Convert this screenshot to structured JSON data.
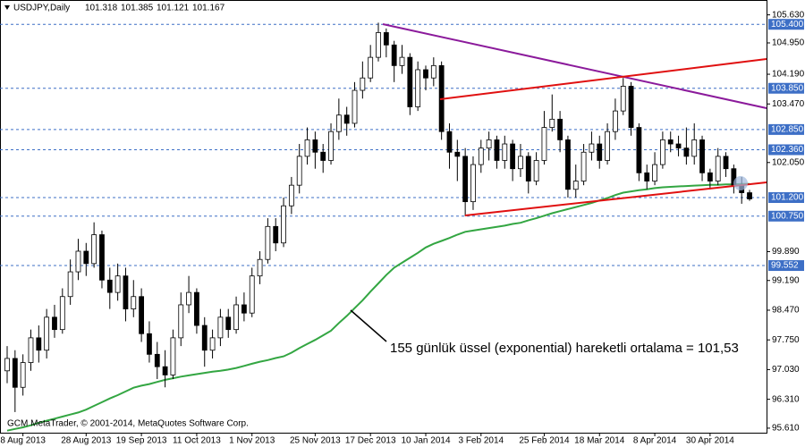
{
  "chart_data": {
    "type": "candlestick",
    "title": "USDJPY,Daily",
    "last_ohlc": [
      101.318,
      101.385,
      101.121,
      101.167
    ],
    "copyright": "GCM MetaTrader, © 2001-2014, MetaQuotes Software Corp.",
    "annotation": "155 günlük üssel (exponential) hareketli ortalama = 101,53",
    "categories": [
      null,
      null,
      "8 Aug 2013",
      null,
      null,
      null,
      null,
      null,
      null,
      null,
      "28 Aug 2013",
      null,
      null,
      null,
      null,
      null,
      null,
      "19 Sep 2013",
      null,
      null,
      null,
      null,
      null,
      null,
      "11 Oct 2013",
      null,
      null,
      null,
      null,
      null,
      null,
      "1 Nov 2013",
      null,
      null,
      null,
      null,
      null,
      null,
      null,
      "25 Nov 2013",
      null,
      null,
      null,
      null,
      null,
      null,
      "17 Dec 2013",
      null,
      null,
      null,
      null,
      null,
      null,
      "10 Jan 2014",
      null,
      null,
      null,
      null,
      null,
      null,
      "3 Feb 2014",
      null,
      null,
      null,
      null,
      null,
      null,
      null,
      "25 Feb 2014",
      null,
      null,
      null,
      null,
      null,
      null,
      "18 Mar 2014",
      null,
      null,
      null,
      null,
      null,
      null,
      "8 Apr 2014",
      null,
      null,
      null,
      null,
      null,
      null,
      "30 Apr 2014",
      null,
      null,
      null,
      null,
      null
    ],
    "open": [
      97.0,
      97.3,
      96.6,
      97.2,
      97.8,
      97.5,
      98.3,
      98.0,
      98.8,
      99.4,
      99.9,
      99.6,
      100.3,
      99.2,
      98.9,
      99.3,
      98.5,
      98.8,
      97.9,
      97.4,
      97.1,
      96.9,
      97.8,
      98.6,
      98.9,
      98.1,
      97.5,
      97.8,
      98.3,
      98.0,
      98.6,
      98.4,
      99.3,
      99.7,
      100.5,
      100.1,
      101.0,
      101.5,
      102.2,
      102.6,
      102.3,
      102.1,
      102.8,
      103.2,
      103.0,
      103.8,
      104.1,
      104.6,
      105.2,
      104.9,
      104.4,
      104.6,
      103.4,
      104.3,
      104.1,
      104.4,
      102.8,
      102.3,
      102.2,
      101.1,
      102.0,
      102.4,
      102.6,
      102.1,
      102.5,
      101.9,
      102.2,
      101.6,
      102.1,
      102.9,
      103.1,
      102.6,
      101.4,
      101.6,
      102.3,
      102.5,
      102.1,
      102.8,
      103.3,
      103.9,
      102.9,
      101.8,
      101.6,
      102.0,
      102.6,
      102.5,
      102.4,
      102.2,
      102.6,
      101.8,
      101.6,
      102.2,
      101.9,
      101.5,
      101.318
    ],
    "high": [
      97.6,
      97.5,
      97.4,
      98.0,
      98.1,
      98.5,
      98.6,
      99.0,
      99.7,
      100.2,
      100.1,
      100.6,
      100.4,
      99.5,
      99.6,
      99.5,
      99.2,
      99.0,
      98.2,
      97.7,
      97.5,
      98.0,
      98.9,
      99.3,
      99.0,
      98.3,
      98.0,
      98.5,
      98.5,
      98.8,
      98.9,
      99.5,
      99.9,
      100.7,
      100.7,
      101.2,
      101.7,
      102.5,
      102.9,
      102.8,
      102.5,
      103.0,
      103.6,
      103.4,
      104.0,
      104.5,
      104.9,
      105.44,
      105.3,
      105.0,
      104.9,
      104.7,
      104.5,
      104.4,
      104.6,
      104.5,
      103.0,
      102.6,
      102.4,
      102.2,
      102.6,
      102.8,
      102.7,
      102.7,
      102.6,
      102.5,
      102.3,
      102.3,
      103.3,
      103.7,
      103.3,
      102.7,
      102.0,
      102.5,
      102.8,
      102.7,
      103.0,
      103.6,
      104.1,
      104.0,
      103.0,
      102.0,
      102.3,
      102.8,
      102.8,
      102.7,
      102.9,
      103.0,
      102.7,
      101.9,
      102.4,
      102.3,
      102.0,
      101.7,
      101.385
    ],
    "low": [
      96.7,
      96.0,
      96.4,
      97.0,
      97.2,
      97.3,
      97.8,
      97.9,
      98.6,
      99.2,
      99.3,
      99.5,
      99.0,
      98.5,
      98.7,
      98.2,
      98.3,
      97.7,
      97.2,
      96.8,
      96.6,
      96.8,
      97.6,
      98.4,
      97.9,
      97.1,
      97.3,
      97.6,
      97.8,
      97.9,
      98.2,
      98.3,
      99.1,
      99.6,
      99.9,
      100.0,
      100.8,
      101.3,
      102.0,
      101.9,
      101.8,
      102.0,
      102.6,
      102.7,
      102.9,
      103.6,
      104.0,
      104.5,
      104.6,
      104.0,
      104.2,
      103.2,
      103.3,
      103.8,
      103.9,
      102.6,
      101.9,
      101.6,
      100.75,
      100.9,
      101.8,
      102.1,
      101.9,
      101.9,
      101.6,
      101.7,
      101.3,
      101.5,
      102.0,
      102.8,
      102.3,
      101.2,
      101.2,
      101.5,
      102.1,
      101.9,
      102.0,
      102.6,
      103.2,
      102.7,
      101.6,
      101.4,
      101.5,
      101.9,
      102.3,
      102.2,
      102.0,
      102.0,
      101.6,
      101.4,
      101.5,
      101.7,
      101.3,
      101.05,
      101.121
    ],
    "close": [
      97.3,
      96.6,
      97.2,
      97.8,
      97.5,
      98.3,
      98.0,
      98.8,
      99.4,
      99.9,
      99.6,
      100.3,
      99.2,
      98.9,
      99.3,
      98.5,
      98.8,
      97.9,
      97.4,
      97.1,
      96.9,
      97.8,
      98.6,
      98.9,
      98.1,
      97.5,
      97.8,
      98.3,
      98.0,
      98.6,
      98.4,
      99.3,
      99.7,
      100.5,
      100.1,
      101.0,
      101.5,
      102.2,
      102.6,
      102.3,
      102.1,
      102.8,
      103.2,
      103.0,
      103.8,
      104.1,
      104.6,
      105.2,
      104.9,
      104.4,
      104.6,
      103.4,
      104.3,
      104.1,
      104.4,
      102.8,
      102.3,
      102.2,
      101.1,
      102.0,
      102.4,
      102.6,
      102.1,
      102.5,
      101.9,
      102.2,
      101.6,
      102.1,
      102.9,
      103.1,
      102.6,
      101.4,
      101.6,
      102.3,
      102.5,
      102.1,
      102.8,
      103.3,
      103.9,
      102.9,
      101.8,
      101.6,
      102.0,
      102.6,
      102.5,
      102.4,
      102.2,
      102.6,
      101.8,
      101.6,
      102.2,
      101.9,
      101.5,
      101.318,
      101.167
    ],
    "series": [
      {
        "color": "#33a642",
        "values": [
          95.55,
          95.59,
          95.63,
          95.68,
          95.74,
          95.79,
          95.84,
          95.89,
          95.94,
          95.99,
          96.06,
          96.15,
          96.24,
          96.33,
          96.41,
          96.5,
          96.59,
          96.64,
          96.68,
          96.73,
          96.78,
          96.82,
          96.86,
          96.89,
          96.92,
          96.95,
          96.98,
          97.0,
          97.03,
          97.07,
          97.12,
          97.17,
          97.22,
          97.26,
          97.31,
          97.35,
          97.44,
          97.55,
          97.65,
          97.75,
          97.86,
          97.97,
          98.16,
          98.33,
          98.52,
          98.71,
          98.92,
          99.12,
          99.32,
          99.5,
          99.62,
          99.74,
          99.86,
          99.99,
          100.08,
          100.15,
          100.22,
          100.3,
          100.37,
          100.4,
          100.43,
          100.46,
          100.49,
          100.52,
          100.56,
          100.59,
          100.65,
          100.7,
          100.76,
          100.82,
          100.87,
          100.92,
          100.97,
          101.02,
          101.07,
          101.13,
          101.19,
          101.26,
          101.32,
          101.35,
          101.38,
          101.4,
          101.43,
          101.45,
          101.46,
          101.47,
          101.48,
          101.49,
          101.5,
          101.51,
          101.51,
          101.52,
          101.52,
          101.53,
          101.53
        ]
      }
    ],
    "ylim": [
      95.5,
      105.99
    ],
    "yticks": [
      {
        "value": 105.63,
        "label": "105.630"
      },
      {
        "value": 104.95,
        "label": "104.950"
      },
      {
        "value": 104.19,
        "label": "104.190"
      },
      {
        "value": 103.47,
        "label": "103.470"
      },
      {
        "value": 102.05,
        "label": "102.050"
      },
      {
        "value": 99.89,
        "label": "99.890"
      },
      {
        "value": 99.19,
        "label": "99.190"
      },
      {
        "value": 98.47,
        "label": "98.470"
      },
      {
        "value": 97.75,
        "label": "97.750"
      },
      {
        "value": 97.03,
        "label": "97.030"
      },
      {
        "value": 96.31,
        "label": "96.310"
      },
      {
        "value": 95.61,
        "label": "95.610"
      }
    ],
    "levels": [
      {
        "value": 105.4,
        "label": "105.400"
      },
      {
        "value": 103.85,
        "label": "103.850"
      },
      {
        "value": 102.85,
        "label": "102.850"
      },
      {
        "value": 102.36,
        "label": "102.360"
      },
      {
        "value": 101.2,
        "label": "101.200"
      },
      {
        "value": 100.75,
        "label": "100.750"
      },
      {
        "value": 99.552,
        "label": "99.552"
      }
    ],
    "level_color": "#3d6fc6",
    "grid": false
  }
}
